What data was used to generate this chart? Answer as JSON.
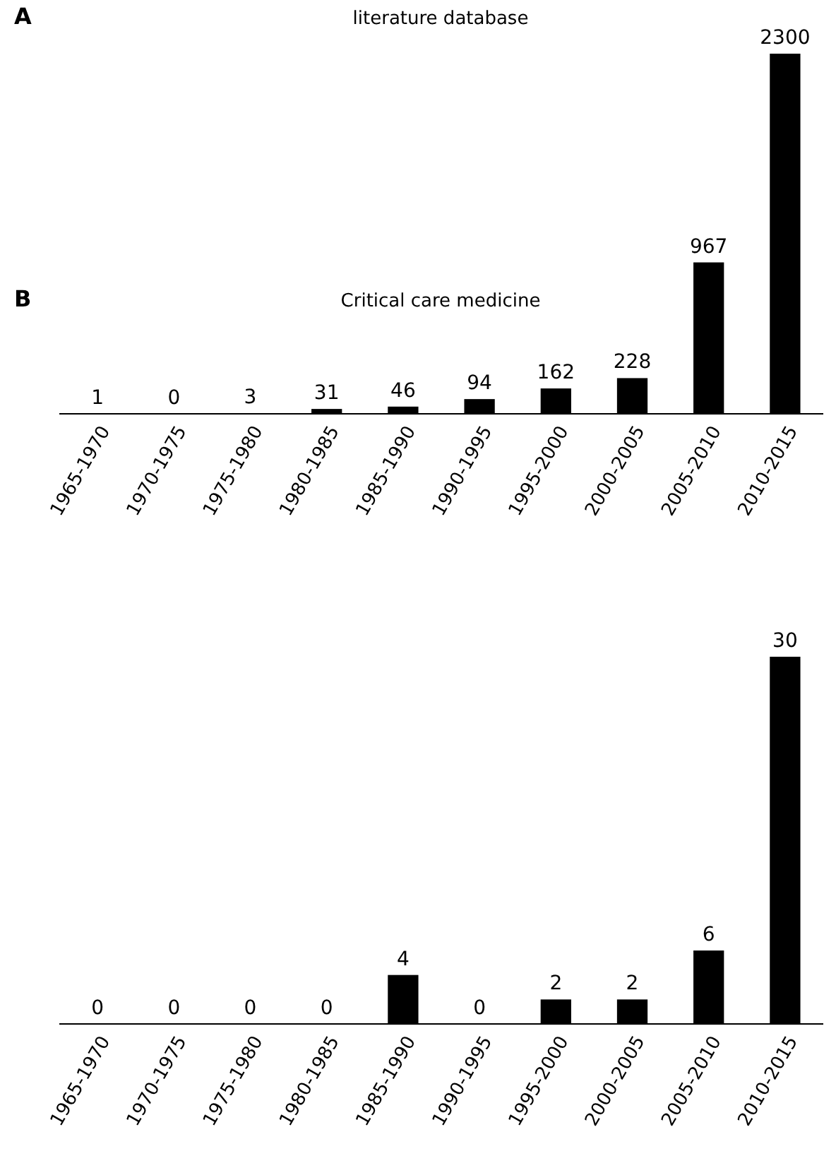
{
  "chart_data": [
    {
      "type": "bar",
      "title": "literature database",
      "annotations": [
        "A"
      ],
      "categories": [
        "1965-1970",
        "1970-1975",
        "1975-1980",
        "1980-1985",
        "1985-1990",
        "1990-1995",
        "1995-2000",
        "2000-2005",
        "2005-2010",
        "2010-2015"
      ],
      "values": [
        1,
        0,
        3,
        31,
        46,
        94,
        162,
        228,
        967,
        2300
      ],
      "color": "#000000",
      "data_labels": true
    },
    {
      "type": "bar",
      "title": "Critical care medicine",
      "annotations": [
        "B"
      ],
      "categories": [
        "1965-1970",
        "1970-1975",
        "1975-1980",
        "1980-1985",
        "1985-1990",
        "1990-1995",
        "1995-2000",
        "2000-2005",
        "2005-2010",
        "2010-2015"
      ],
      "values": [
        0,
        0,
        0,
        0,
        4,
        0,
        2,
        2,
        6,
        30
      ],
      "color": "#000000",
      "data_labels": true
    }
  ]
}
